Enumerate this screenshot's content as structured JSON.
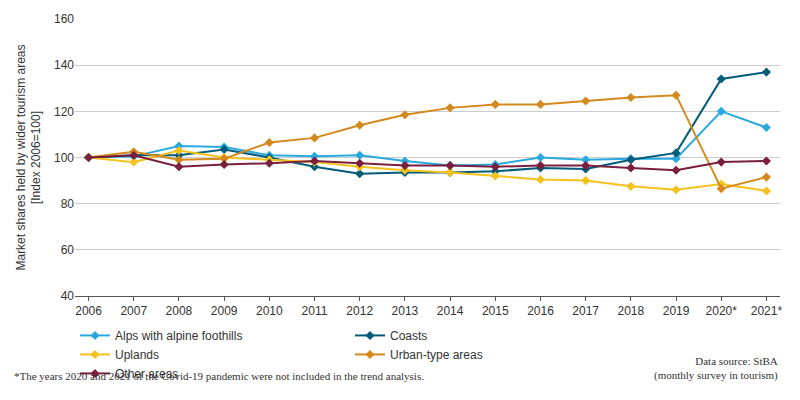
{
  "chart_data": {
    "type": "line",
    "y_label": "Market shares held by wider tourism areas\n[Index 2006=100]",
    "categories": [
      "2006",
      "2007",
      "2008",
      "2009",
      "2010",
      "2011",
      "2012",
      "2013",
      "2014",
      "2015",
      "2016",
      "2017",
      "2018",
      "2019",
      "2020*",
      "2021*"
    ],
    "series": [
      {
        "name": "Alps with alpine foothills",
        "color": "#29a9e0",
        "values": [
          100,
          100.5,
          105,
          104.5,
          101,
          100.5,
          101,
          98.5,
          96.5,
          97,
          100,
          99,
          99.5,
          99.5,
          120,
          113
        ]
      },
      {
        "name": "Coasts",
        "color": "#005c7a",
        "values": [
          100,
          101,
          101,
          103.5,
          100,
          96,
          93,
          93.5,
          93.5,
          94,
          95.5,
          95,
          99,
          102,
          134,
          137
        ]
      },
      {
        "name": "Uplands",
        "color": "#f5c21b",
        "values": [
          100,
          98,
          103,
          100,
          99,
          98,
          96,
          94.5,
          93.5,
          92,
          90.5,
          90,
          87.5,
          86,
          88.5,
          85.5
        ]
      },
      {
        "name": "Urban-type areas",
        "color": "#d4891c",
        "values": [
          100,
          102.5,
          99,
          99.5,
          106.5,
          108.5,
          114,
          118.5,
          121.5,
          123,
          123,
          124.5,
          126,
          127,
          86.5,
          91.5
        ]
      },
      {
        "name": "Other areas",
        "color": "#7a1f3d",
        "values": [
          100,
          101,
          96,
          97,
          97.5,
          98.5,
          97.5,
          96.5,
          96.5,
          96,
          96.5,
          96.5,
          95.5,
          94.5,
          98,
          98.5
        ]
      }
    ],
    "marker": "diamond",
    "ylim": [
      40,
      160
    ],
    "yticks": [
      40,
      60,
      80,
      100,
      120,
      140,
      160
    ],
    "grid": true,
    "legend": "bottom",
    "footnote": "*The years 2020 and 2021 of the Covid-19 pandemic were not included in the trend analysis.",
    "source": "Data source: StBA\n(monthly survey in tourism)"
  }
}
